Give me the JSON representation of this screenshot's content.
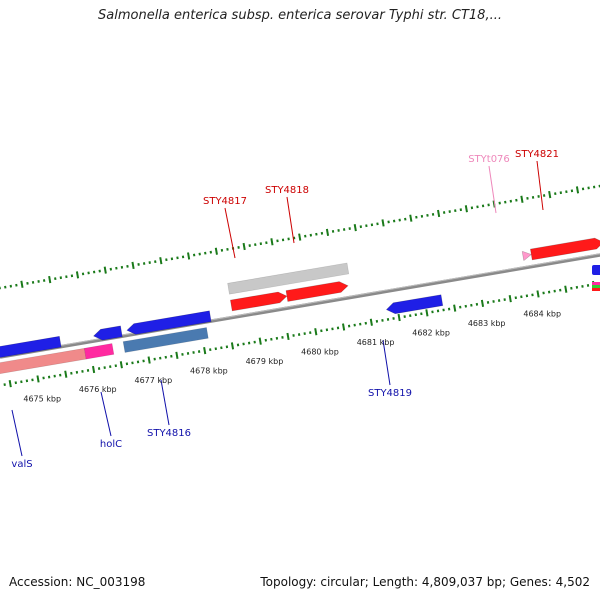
{
  "title": "Salmonella enterica subsp. enterica serovar Typhi str. CT18,...",
  "footer": {
    "accession": "Accession: NC_003198",
    "summary": "Topology: circular; Length: 4,809,037 bp; Genes: 4,502"
  },
  "colors": {
    "backbone": "#8a8a8a",
    "tick": "#1a7a1a",
    "forward_gene": "#ff1a1a",
    "forward_label": "#cc0000",
    "reverse_gene": "#1f1fe6",
    "reverse_label": "#1010aa",
    "rna_gene": "#ff99cc",
    "rna_label": "#ee88bb",
    "grey_feature": "#c8c8c8",
    "steel_feature": "#4a7ab0",
    "pink_feature": "#f08a8a",
    "magenta_feature": "#ff2aa0"
  },
  "scale": {
    "unit": "kbp",
    "labels": [
      "4675 kbp",
      "4676 kbp",
      "4677 kbp",
      "4678 kbp",
      "4679 kbp",
      "4680 kbp",
      "4681 kbp",
      "4682 kbp",
      "4683 kbp",
      "4684 kbp"
    ],
    "start_kbp": 4674.4,
    "end_kbp": 4685.2
  },
  "genes": [
    {
      "name": "STY4817",
      "strand": "forward",
      "type": "cds",
      "start": 4678.6,
      "end": 4679.6
    },
    {
      "name": "STY4818",
      "strand": "forward",
      "type": "cds",
      "start": 4679.6,
      "end": 4680.7
    },
    {
      "name": "STYt076",
      "strand": "forward",
      "type": "rna",
      "start": 4683.85,
      "end": 4684.0
    },
    {
      "name": "STY4821",
      "strand": "forward",
      "type": "cds",
      "start": 4684.0,
      "end": 4685.3
    },
    {
      "name": "STY4819",
      "strand": "reverse",
      "type": "cds",
      "start": 4681.3,
      "end": 4682.3
    },
    {
      "name": "STY4816",
      "strand": "reverse",
      "type": "cds",
      "start": 4676.7,
      "end": 4678.2
    },
    {
      "name": "holC",
      "strand": "reverse",
      "type": "cds",
      "start": 4676.1,
      "end": 4676.6
    },
    {
      "name": "valS",
      "strand": "reverse",
      "type": "cds",
      "start": 4674.0,
      "end": 4675.5
    }
  ],
  "labels": [
    {
      "name": "STY4817",
      "strand": "forward"
    },
    {
      "name": "STY4818",
      "strand": "forward"
    },
    {
      "name": "STYt076",
      "strand": "forward"
    },
    {
      "name": "STY4821",
      "strand": "forward"
    },
    {
      "name": "STY4819",
      "strand": "reverse"
    },
    {
      "name": "STY4816",
      "strand": "reverse"
    },
    {
      "name": "holC",
      "strand": "reverse"
    },
    {
      "name": "valS",
      "strand": "reverse"
    }
  ]
}
